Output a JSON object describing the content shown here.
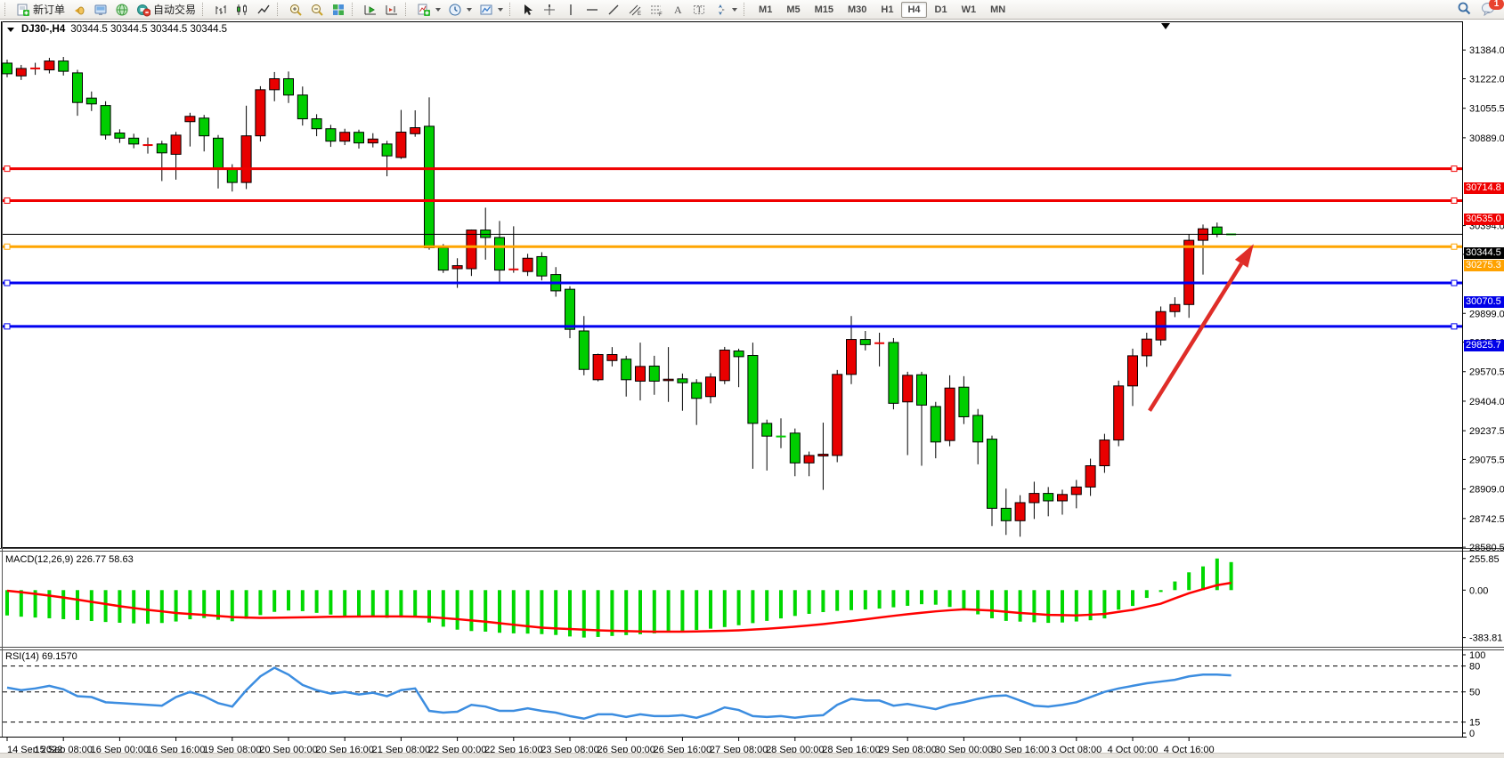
{
  "toolbar": {
    "new_order_label": "新订单",
    "auto_trading_label": "自动交易",
    "timeframes": [
      {
        "label": "M1",
        "active": false
      },
      {
        "label": "M5",
        "active": false
      },
      {
        "label": "M15",
        "active": false
      },
      {
        "label": "M30",
        "active": false
      },
      {
        "label": "H1",
        "active": false
      },
      {
        "label": "H4",
        "active": true
      },
      {
        "label": "D1",
        "active": false
      },
      {
        "label": "W1",
        "active": false
      },
      {
        "label": "MN",
        "active": false
      }
    ],
    "notification_count": "1"
  },
  "chart": {
    "symbol_title": "DJ30-,H4",
    "quote_line": "30344.5 30344.5 30344.5 30344.5",
    "price_axis_ticks": [
      "31384.0",
      "31222.0",
      "31055.5",
      "30889.0",
      "30394.0",
      "30232.0",
      "29899.0",
      "29737.0",
      "29570.5",
      "29404.0",
      "29237.5",
      "29075.5",
      "28909.0",
      "28742.5",
      "28580.5"
    ],
    "price_lines": [
      {
        "label": "30714.8",
        "value": 30714.8,
        "color": "#f00000",
        "badge": "#ef0000",
        "width": 3
      },
      {
        "label": "30535.0",
        "value": 30535.0,
        "color": "#f00000",
        "badge": "#ef0000",
        "width": 3
      },
      {
        "label": "30344.5",
        "value": 30344.5,
        "color": "#000000",
        "badge": "#000000",
        "width": 1
      },
      {
        "label": "30275.3",
        "value": 30275.3,
        "color": "#ffa500",
        "badge": "#ffa200",
        "width": 3
      },
      {
        "label": "30070.5",
        "value": 30070.5,
        "color": "#0000f0",
        "badge": "#0000e8",
        "width": 3
      },
      {
        "label": "29825.7",
        "value": 29825.7,
        "color": "#0000f0",
        "badge": "#0000e8",
        "width": 3
      }
    ],
    "dates": [
      "14 Sep 2022",
      "15 Sep 08:00",
      "16 Sep 00:00",
      "16 Sep 16:00",
      "19 Sep 08:00",
      "20 Sep 00:00",
      "20 Sep 16:00",
      "21 Sep 08:00",
      "22 Sep 00:00",
      "22 Sep 16:00",
      "23 Sep 08:00",
      "26 Sep 00:00",
      "26 Sep 16:00",
      "27 Sep 08:00",
      "28 Sep 00:00",
      "28 Sep 16:00",
      "29 Sep 08:00",
      "30 Sep 00:00",
      "30 Sep 16:00",
      "3 Oct 08:00",
      "4 Oct 00:00",
      "4 Oct 16:00"
    ],
    "date_tick_every": 4,
    "annotation_arrow": {
      "from_index": 81.2,
      "from_price": 29350,
      "to_index": 88.6,
      "to_price": 30290,
      "color": "#df2d28"
    }
  },
  "chart_data": [
    {
      "type": "candlestick",
      "title": "DJ30-,H4",
      "up_color": "#e80000",
      "down_color": "#00ce00",
      "wick_color": "#000000",
      "ylim": [
        28560,
        31460
      ],
      "candles": [
        [
          31310,
          31330,
          31230,
          31250
        ],
        [
          31238,
          31300,
          31215,
          31280
        ],
        [
          31278,
          31312,
          31244,
          31280
        ],
        [
          31272,
          31340,
          31252,
          31322
        ],
        [
          31322,
          31345,
          31240,
          31264
        ],
        [
          31255,
          31272,
          31013,
          31088
        ],
        [
          31113,
          31150,
          31040,
          31080
        ],
        [
          31071,
          31095,
          30879,
          30904
        ],
        [
          30916,
          30937,
          30860,
          30887
        ],
        [
          30887,
          30912,
          30830,
          30854
        ],
        [
          30846,
          30890,
          30800,
          30848
        ],
        [
          30854,
          30872,
          30645,
          30804
        ],
        [
          30796,
          30922,
          30653,
          30904
        ],
        [
          30980,
          31030,
          30840,
          31010
        ],
        [
          31000,
          31018,
          30812,
          30900
        ],
        [
          30887,
          30905,
          30603,
          30712
        ],
        [
          30715,
          30740,
          30586,
          30637
        ],
        [
          30637,
          31070,
          30600,
          30900
        ],
        [
          30900,
          31180,
          30868,
          31160
        ],
        [
          31160,
          31260,
          31095,
          31222
        ],
        [
          31222,
          31263,
          31085,
          31130
        ],
        [
          31130,
          31178,
          30958,
          30996
        ],
        [
          30996,
          31022,
          30898,
          30940
        ],
        [
          30940,
          30962,
          30838,
          30870
        ],
        [
          30870,
          30940,
          30848,
          30920
        ],
        [
          30920,
          30935,
          30828,
          30860
        ],
        [
          30860,
          30915,
          30835,
          30882
        ],
        [
          30854,
          30872,
          30672,
          30787
        ],
        [
          30778,
          31046,
          30770,
          30921
        ],
        [
          30912,
          31044,
          30895,
          30946
        ],
        [
          30954,
          31117,
          30258,
          30269
        ],
        [
          30269,
          30290,
          30127,
          30143
        ],
        [
          30151,
          30210,
          30043,
          30168
        ],
        [
          30151,
          30372,
          30110,
          30369
        ],
        [
          30369,
          30495,
          30202,
          30327
        ],
        [
          30327,
          30420,
          30077,
          30143
        ],
        [
          30145,
          30390,
          30128,
          30147
        ],
        [
          30135,
          30235,
          30110,
          30210
        ],
        [
          30219,
          30244,
          30085,
          30110
        ],
        [
          30118,
          30160,
          29993,
          30026
        ],
        [
          30035,
          30052,
          29759,
          29809
        ],
        [
          29800,
          29884,
          29550,
          29583
        ],
        [
          29525,
          29672,
          29516,
          29667
        ],
        [
          29633,
          29709,
          29600,
          29667
        ],
        [
          29641,
          29660,
          29430,
          29525
        ],
        [
          29517,
          29734,
          29408,
          29600
        ],
        [
          29602,
          29660,
          29440,
          29517
        ],
        [
          29520,
          29709,
          29400,
          29528
        ],
        [
          29530,
          29560,
          29350,
          29508
        ],
        [
          29508,
          29528,
          29270,
          29420
        ],
        [
          29430,
          29562,
          29392,
          29540
        ],
        [
          29520,
          29710,
          29500,
          29692
        ],
        [
          29687,
          29700,
          29483,
          29655
        ],
        [
          29662,
          29734,
          29023,
          29279
        ],
        [
          29279,
          29300,
          29013,
          29207
        ],
        [
          29207,
          29307,
          29139,
          29205
        ],
        [
          29224,
          29250,
          28981,
          29056
        ],
        [
          29056,
          29120,
          28981,
          29098
        ],
        [
          29095,
          29283,
          28904,
          29105
        ],
        [
          29098,
          29580,
          29060,
          29555
        ],
        [
          29555,
          29884,
          29500,
          29752
        ],
        [
          29752,
          29800,
          29690,
          29723
        ],
        [
          29729,
          29790,
          29600,
          29731
        ],
        [
          29735,
          29760,
          29358,
          29392
        ],
        [
          29400,
          29570,
          29100,
          29550
        ],
        [
          29553,
          29570,
          29040,
          29382
        ],
        [
          29374,
          29400,
          29082,
          29174
        ],
        [
          29182,
          29550,
          29150,
          29478
        ],
        [
          29483,
          29545,
          29275,
          29316
        ],
        [
          29324,
          29360,
          29048,
          29174
        ],
        [
          29190,
          29210,
          28700,
          28800
        ],
        [
          28800,
          28911,
          28650,
          28730
        ],
        [
          28730,
          28874,
          28640,
          28832
        ],
        [
          28832,
          28950,
          28740,
          28884
        ],
        [
          28884,
          28920,
          28755,
          28842
        ],
        [
          28842,
          28905,
          28764,
          28878
        ],
        [
          28878,
          28960,
          28800,
          28920
        ],
        [
          28920,
          29080,
          28870,
          29040
        ],
        [
          29040,
          29220,
          29000,
          29185
        ],
        [
          29185,
          29520,
          29150,
          29490
        ],
        [
          29490,
          29700,
          29377,
          29660
        ],
        [
          29660,
          29790,
          29598,
          29754
        ],
        [
          29749,
          29938,
          29718,
          29909
        ],
        [
          29909,
          29990,
          29878,
          29949
        ],
        [
          29949,
          30346,
          29874,
          30311
        ],
        [
          30311,
          30400,
          30118,
          30376
        ],
        [
          30386,
          30411,
          30328,
          30345
        ],
        [
          30344.5,
          30344.5,
          30344.5,
          30344.5
        ]
      ]
    },
    {
      "type": "bar",
      "title": "MACD(12,26,9)",
      "current_values": "226.77 58.63",
      "bar_color": "#00d800",
      "signal_color": "#ff0000",
      "ylim": [
        -460,
        320
      ],
      "ticks": [
        {
          "label": "255.85",
          "value": 255.85
        },
        {
          "label": "0.00",
          "value": 0
        },
        {
          "label": "-383.81",
          "value": -383.81
        }
      ],
      "histogram": [
        -205,
        -215,
        -222,
        -228,
        -235,
        -242,
        -250,
        -258,
        -264,
        -269,
        -272,
        -266,
        -254,
        -236,
        -226,
        -240,
        -252,
        -232,
        -202,
        -176,
        -165,
        -170,
        -184,
        -198,
        -209,
        -215,
        -220,
        -224,
        -222,
        -218,
        -262,
        -296,
        -320,
        -331,
        -336,
        -345,
        -350,
        -352,
        -356,
        -363,
        -375,
        -383.81,
        -379,
        -371,
        -364,
        -357,
        -350,
        -341,
        -331,
        -322,
        -312,
        -299,
        -284,
        -267,
        -249,
        -229,
        -209,
        -192,
        -178,
        -168,
        -162,
        -157,
        -149,
        -139,
        -127,
        -114,
        -118,
        -136,
        -161,
        -196,
        -228,
        -249,
        -255,
        -260,
        -265,
        -262,
        -254,
        -244,
        -229,
        -158,
        -128,
        -63,
        -15,
        70,
        144,
        192,
        255.85,
        226.77
      ],
      "signal": [
        -5,
        -17,
        -30,
        -45,
        -60,
        -77,
        -95,
        -112,
        -130,
        -145,
        -160,
        -172,
        -185,
        -193,
        -200,
        -209,
        -218,
        -222,
        -225,
        -224,
        -222,
        -220,
        -218,
        -216,
        -215,
        -214,
        -213,
        -213,
        -213,
        -215,
        -218,
        -226,
        -235,
        -245,
        -255,
        -268,
        -280,
        -292,
        -304,
        -310,
        -315,
        -320,
        -325,
        -329,
        -332,
        -334,
        -336,
        -336,
        -336,
        -334,
        -332,
        -329,
        -325,
        -319,
        -313,
        -305,
        -296,
        -286,
        -275,
        -262,
        -250,
        -236,
        -222,
        -208,
        -195,
        -183,
        -172,
        -163,
        -155,
        -160,
        -165,
        -175,
        -185,
        -192,
        -200,
        -202,
        -205,
        -199,
        -193,
        -176,
        -160,
        -135,
        -110,
        -67,
        -25,
        8,
        40,
        58.63
      ]
    },
    {
      "type": "line",
      "title": "RSI(14)",
      "current_value": "69.1570",
      "line_color": "#3c8de0",
      "levels": [
        80,
        50,
        15
      ],
      "ylim": [
        0,
        100
      ],
      "ticks": [
        {
          "label": "100",
          "value": 100
        },
        {
          "label": "80",
          "value": 80
        },
        {
          "label": "50",
          "value": 50
        },
        {
          "label": "15",
          "value": 15
        },
        {
          "label": "0",
          "value": 0
        }
      ],
      "values": [
        55,
        52,
        54,
        57,
        53,
        45,
        44,
        38,
        37,
        36,
        35,
        34,
        44,
        50,
        45,
        37,
        33,
        52,
        68,
        78,
        70,
        58,
        52,
        48,
        50,
        47,
        49,
        45,
        52,
        54,
        28,
        26,
        27,
        35,
        33,
        28,
        28,
        31,
        28,
        26,
        22,
        19,
        24,
        24,
        21,
        24,
        22,
        22,
        23,
        20,
        25,
        32,
        29,
        22,
        21,
        22,
        20,
        22,
        23,
        35,
        42,
        40,
        40,
        34,
        36,
        33,
        30,
        35,
        38,
        42,
        45,
        46,
        40,
        34,
        33,
        35,
        38,
        44,
        50,
        54,
        57,
        60,
        62,
        64,
        68,
        70,
        70,
        69.157
      ]
    }
  ]
}
